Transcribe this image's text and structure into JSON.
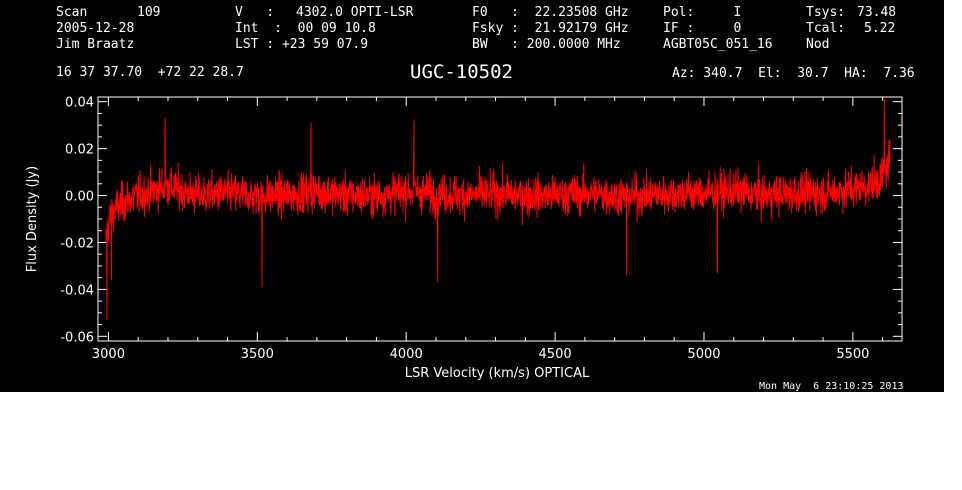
{
  "header": {
    "scan_label": "Scan",
    "scan_value": "109",
    "date": "2005-12-28",
    "observer": "Jim Braatz",
    "v_label": "V   :",
    "v_value": "4302.0 OPTI-LSR",
    "int": "Int  :  00 09 10.8",
    "lst": "LST : +23 59 07.9",
    "f0": "F0   :  22.23508 GHz",
    "fsky": "Fsky :  21.92179 GHz",
    "bw": "BW   : 200.0000 MHz",
    "pol": "Pol:     I",
    "if": "IF :     0",
    "project": "AGBT05C_051_16",
    "tsys_label": "Tsys:",
    "tsys_value": "73.48",
    "tcal_label": "Tcal:",
    "tcal_value": "5.22",
    "mode": "Nod",
    "coords": "16 37 37.70  +72 22 28.7",
    "source": "UGC-10502",
    "azelha": "Az: 340.7  El:  30.7  HA:  7.36",
    "timestamp": "Mon May  6 23:10:25 2013"
  },
  "colors": {
    "background": "#000000",
    "trace": "#ff0000",
    "axes": "#ffffff"
  },
  "chart_data": {
    "type": "line",
    "xlabel": "LSR Velocity (km/s) OPTICAL",
    "ylabel": "Flux Density (Jy)",
    "xlim": [
      2965,
      5665
    ],
    "ylim": [
      -0.062,
      0.042
    ],
    "xticks": [
      3000,
      3500,
      4000,
      4500,
      5000,
      5500
    ],
    "xtick_labels": [
      "3000",
      "3500",
      "4000",
      "4500",
      "5000",
      "5500"
    ],
    "yticks": [
      -0.06,
      -0.04,
      -0.02,
      0.0,
      0.02,
      0.04
    ],
    "ytick_labels": [
      "-0.06",
      "-0.04",
      "-0.02",
      "0.00",
      "0.02",
      "0.04"
    ],
    "grid": false,
    "series": [
      {
        "x": [
          2990,
          3000,
          3010,
          3030,
          3060,
          3100,
          3150,
          3200,
          3250,
          3300,
          3400,
          3500,
          3600,
          3700,
          3800,
          3900,
          4000,
          4100,
          4200,
          4300,
          4400,
          4500,
          4600,
          4700,
          4800,
          4900,
          5000,
          5100,
          5200,
          5300,
          5400,
          5500,
          5550,
          5580,
          5600,
          5615,
          5625
        ],
        "y": [
          -0.02,
          -0.012,
          -0.008,
          -0.005,
          -0.002,
          0.0,
          0.002,
          0.004,
          0.002,
          0.0,
          0.001,
          0.0,
          0.0,
          0.002,
          0.0,
          0.0,
          0.002,
          0.001,
          0.0,
          0.001,
          0.0,
          0.0,
          0.001,
          0.0,
          0.0,
          0.001,
          0.001,
          0.002,
          0.0,
          0.001,
          0.001,
          0.003,
          0.004,
          0.006,
          0.008,
          0.012,
          0.018
        ],
        "noise_sigma_jy": 0.007,
        "extrema": [
          {
            "x": 2995,
            "y": -0.053
          },
          {
            "x": 3010,
            "y": -0.036
          },
          {
            "x": 3190,
            "y": 0.033
          },
          {
            "x": 3515,
            "y": -0.039
          },
          {
            "x": 3680,
            "y": 0.031
          },
          {
            "x": 4025,
            "y": 0.032
          },
          {
            "x": 4105,
            "y": -0.037
          },
          {
            "x": 4740,
            "y": -0.034
          },
          {
            "x": 5045,
            "y": -0.033
          },
          {
            "x": 5605,
            "y": 0.041
          },
          {
            "x": 5630,
            "y": 0.039
          }
        ]
      }
    ]
  }
}
